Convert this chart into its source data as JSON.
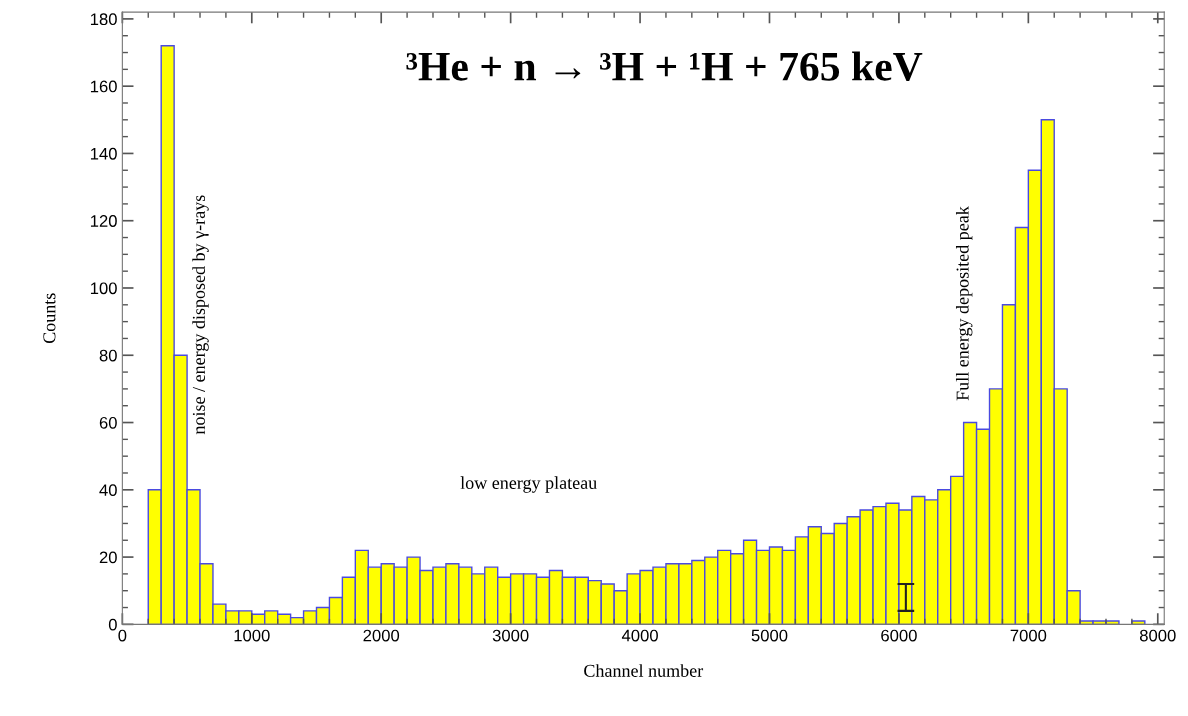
{
  "chart_data": {
    "type": "histogram",
    "xlabel": "Channel number",
    "ylabel": "Counts",
    "bins": [
      0,
      100,
      200,
      300,
      400,
      500,
      600,
      700,
      800,
      900,
      1000,
      1100,
      1200,
      1300,
      1400,
      1500,
      1600,
      1700,
      1800,
      1900,
      2000,
      2100,
      2200,
      2300,
      2400,
      2500,
      2600,
      2700,
      2800,
      2900,
      3000,
      3100,
      3200,
      3300,
      3400,
      3500,
      3600,
      3700,
      3800,
      3900,
      4000,
      4100,
      4200,
      4300,
      4400,
      4500,
      4600,
      4700,
      4800,
      4900,
      5000,
      5100,
      5200,
      5300,
      5400,
      5500,
      5600,
      5700,
      5800,
      5900,
      6000,
      6100,
      6200,
      6300,
      6400,
      6500,
      6600,
      6700,
      6800,
      6900,
      7000,
      7100,
      7200,
      7300,
      7400,
      7500,
      7600,
      7700,
      7800,
      7900,
      8000
    ],
    "values": [
      0,
      0,
      40,
      172,
      80,
      40,
      18,
      6,
      4,
      4,
      3,
      4,
      3,
      2,
      4,
      5,
      8,
      14,
      22,
      17,
      18,
      17,
      20,
      16,
      17,
      18,
      17,
      15,
      17,
      14,
      15,
      15,
      14,
      16,
      14,
      14,
      13,
      12,
      10,
      15,
      16,
      17,
      18,
      18,
      19,
      20,
      22,
      21,
      25,
      22,
      23,
      22,
      26,
      29,
      27,
      30,
      32,
      34,
      35,
      36,
      34,
      38,
      37,
      40,
      44,
      60,
      58,
      70,
      95,
      118,
      135,
      150,
      70,
      10,
      1,
      1,
      1,
      0,
      1,
      0
    ],
    "color": "#ffff00",
    "xlim": [
      0,
      8050
    ],
    "ylim": [
      0,
      182
    ],
    "xticks": [
      0,
      1000,
      2000,
      3000,
      4000,
      5000,
      6000,
      7000,
      8000
    ],
    "yticks": [
      0,
      20,
      40,
      60,
      80,
      100,
      120,
      140,
      160,
      180
    ],
    "grid": false,
    "annotations": [
      {
        "text": "³He + n → ³H + ¹H + 765 keV"
      },
      "noise / energy disposed by γ-rays",
      "low energy plateau",
      "Full energy deposited peak"
    ]
  }
}
